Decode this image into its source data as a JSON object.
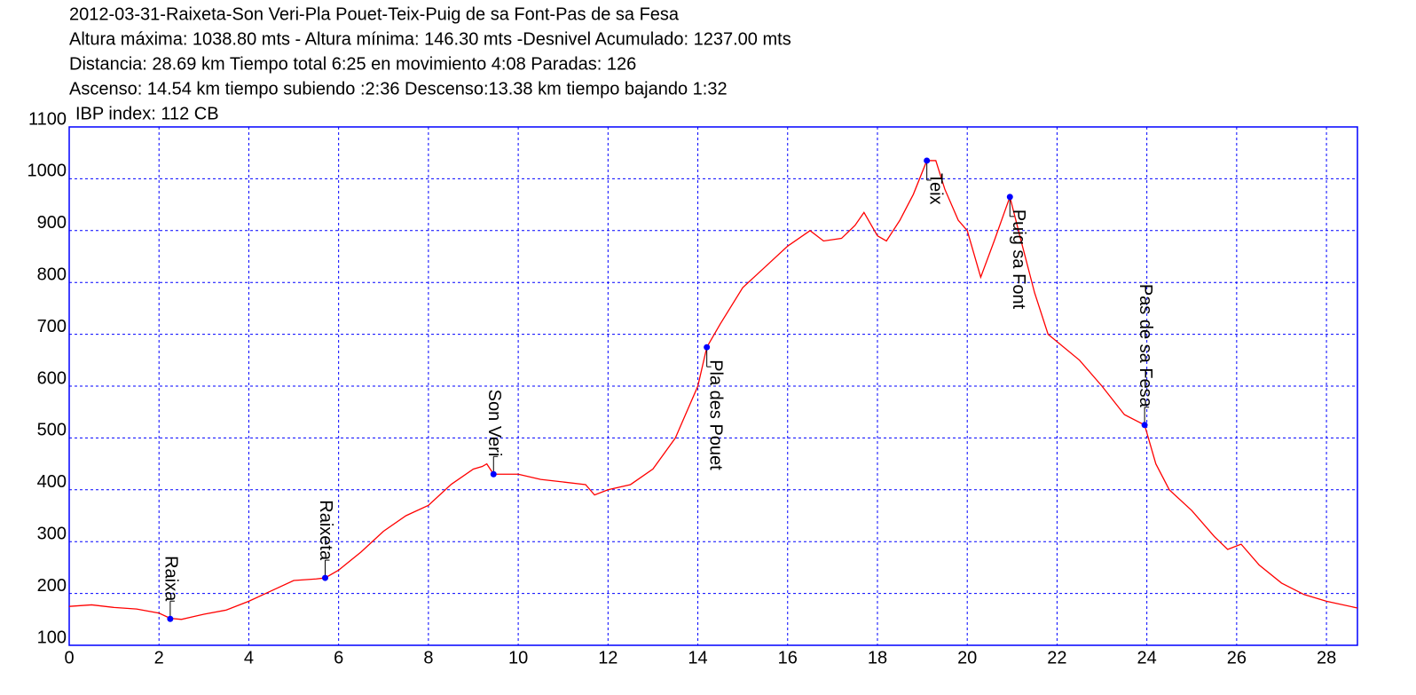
{
  "chart_data": {
    "type": "line",
    "title": "2012-03-31-Raixeta-Son Veri-Pla Pouet-Teix-Puig de sa Font-Pas de sa Fesa",
    "subtitle": [
      "Altura máxima: 1038.80 mts - Altura mínima: 146.30 mts -Desnivel Acumulado: 1237.00 mts",
      "Distancia: 28.69 km  Tiempo total 6:25  en movimiento 4:08 Paradas: 126",
      "Ascenso: 14.54 km  tiempo subiendo :2:36  Descenso:13.38 km tiempo bajando 1:32",
      "IBP index: 112 CB"
    ],
    "x": [
      0,
      0.5,
      1,
      1.5,
      2,
      2.25,
      2.5,
      2.75,
      3,
      3.5,
      4,
      4.5,
      5,
      5.5,
      5.7,
      6,
      6.5,
      7,
      7.5,
      8,
      8.5,
      9,
      9.2,
      9.3,
      9.45,
      10,
      10.5,
      11,
      11.5,
      11.7,
      12,
      12.5,
      13,
      13.5,
      14,
      14.2,
      14.5,
      15,
      15.5,
      16,
      16.5,
      16.8,
      17.2,
      17.5,
      17.7,
      18,
      18.2,
      18.5,
      18.8,
      19.1,
      19.3,
      19.5,
      19.8,
      20,
      20.3,
      20.6,
      20.95,
      21.2,
      21.5,
      21.8,
      22.5,
      23,
      23.5,
      23.95,
      24.2,
      24.5,
      25,
      25.5,
      25.8,
      26.1,
      26.5,
      27,
      27.5,
      28,
      28.69
    ],
    "series": [
      {
        "color": "#ff0000",
        "values": [
          175,
          178,
          173,
          170,
          162,
          152,
          150,
          155,
          160,
          168,
          185,
          205,
          225,
          228,
          230,
          245,
          280,
          320,
          350,
          370,
          410,
          440,
          445,
          450,
          430,
          430,
          420,
          415,
          410,
          390,
          400,
          410,
          440,
          500,
          600,
          675,
          720,
          790,
          830,
          870,
          900,
          880,
          885,
          910,
          935,
          890,
          880,
          920,
          970,
          1035,
          1035,
          980,
          920,
          900,
          810,
          880,
          965,
          880,
          780,
          700,
          650,
          600,
          545,
          525,
          450,
          400,
          360,
          310,
          285,
          295,
          255,
          220,
          198,
          185,
          172
        ]
      }
    ],
    "annotations": [
      {
        "text": "Raixa",
        "x": 2.25,
        "y": 151,
        "side": "above"
      },
      {
        "text": "Raixeta",
        "x": 5.7,
        "y": 230,
        "side": "above"
      },
      {
        "text": "Son  Veri",
        "x": 9.45,
        "y": 430,
        "side": "above"
      },
      {
        "text": "Pla des Pouet",
        "x": 14.2,
        "y": 675,
        "side": "below"
      },
      {
        "text": "Teix",
        "x": 19.1,
        "y": 1035,
        "side": "below"
      },
      {
        "text": "Puig sa Font",
        "x": 20.95,
        "y": 965,
        "side": "below"
      },
      {
        "text": "Pas de sa Fesa",
        "x": 23.95,
        "y": 525,
        "side": "above"
      }
    ],
    "marker_color": "#0000ff",
    "frame_color": "#0000ff",
    "xlim": [
      0,
      28.69
    ],
    "ylim": [
      100,
      1100
    ],
    "xticks": [
      0,
      2,
      4,
      6,
      8,
      10,
      12,
      14,
      16,
      18,
      20,
      22,
      24,
      26,
      28
    ],
    "yticks": [
      100,
      200,
      300,
      400,
      500,
      600,
      700,
      800,
      900,
      1000,
      1100
    ],
    "grid": true
  }
}
